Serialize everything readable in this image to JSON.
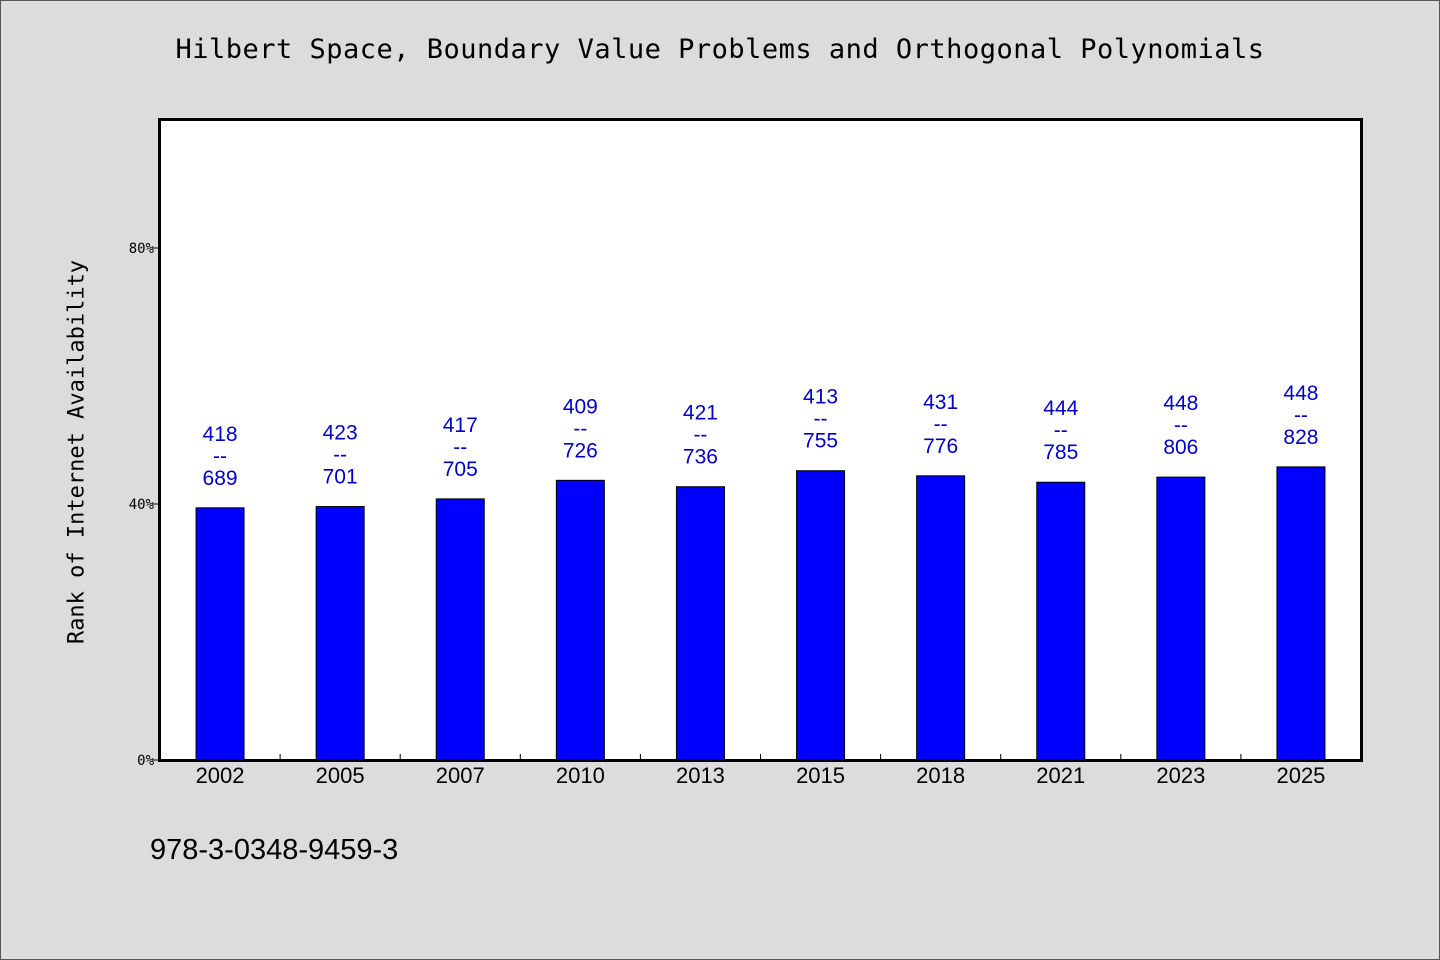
{
  "chart_data": {
    "type": "bar",
    "title": "Hilbert Space, Boundary Value Problems and Orthogonal Polynomials",
    "xlabel": "",
    "ylabel": "Rank of Internet Availability",
    "ylim": [
      0,
      100
    ],
    "yticks": [
      0,
      40,
      80
    ],
    "ytick_suffix": "%",
    "grid": false,
    "categories": [
      "2002",
      "2005",
      "2007",
      "2010",
      "2013",
      "2015",
      "2018",
      "2021",
      "2023",
      "2025"
    ],
    "values": [
      39.4,
      39.6,
      40.8,
      43.7,
      42.7,
      45.2,
      44.4,
      43.4,
      44.2,
      45.8
    ],
    "labels_top": [
      "418",
      "423",
      "417",
      "409",
      "421",
      "413",
      "431",
      "444",
      "448",
      "448"
    ],
    "labels_bottom": [
      "689",
      "701",
      "705",
      "726",
      "736",
      "755",
      "776",
      "785",
      "806",
      "828"
    ],
    "label_separator": "--",
    "bar_color": "#0000ff",
    "label_color": "#0000cc"
  },
  "footer": {
    "isbn": "978-3-0348-9459-3"
  }
}
